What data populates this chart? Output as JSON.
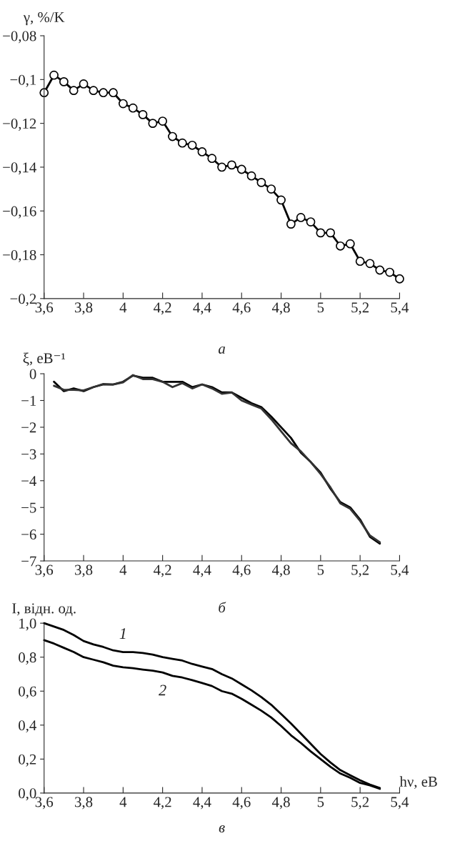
{
  "chart_data": [
    {
      "type": "line",
      "ylabel": "γ, %/K",
      "annotations": [
        "а"
      ],
      "marker": "circle",
      "x": [
        3.6,
        3.65,
        3.7,
        3.75,
        3.8,
        3.85,
        3.9,
        3.95,
        4.0,
        4.05,
        4.1,
        4.15,
        4.2,
        4.25,
        4.3,
        4.35,
        4.4,
        4.45,
        4.5,
        4.55,
        4.6,
        4.65,
        4.7,
        4.75,
        4.8,
        4.85,
        4.9,
        4.95,
        5.0,
        5.05,
        5.1,
        5.15,
        5.2,
        5.25,
        5.3,
        5.35,
        5.4
      ],
      "series": [
        {
          "color": "#000000",
          "values": [
            -0.106,
            -0.098,
            -0.101,
            -0.105,
            -0.102,
            -0.105,
            -0.106,
            -0.106,
            -0.111,
            -0.113,
            -0.116,
            -0.12,
            -0.119,
            -0.126,
            -0.129,
            -0.13,
            -0.133,
            -0.136,
            -0.14,
            -0.139,
            -0.141,
            -0.144,
            -0.147,
            -0.15,
            -0.155,
            -0.166,
            -0.163,
            -0.165,
            -0.17,
            -0.17,
            -0.176,
            -0.175,
            -0.183,
            -0.184,
            -0.187,
            -0.188,
            -0.191
          ]
        }
      ],
      "xlim": [
        3.6,
        5.4
      ],
      "ylim": [
        -0.2,
        -0.08
      ],
      "xticks": [
        {
          "value": 3.6,
          "label": "3,6"
        },
        {
          "value": 3.8,
          "label": "3,8"
        },
        4,
        {
          "value": 4.2,
          "label": "4,2"
        },
        {
          "value": 4.4,
          "label": "4,4"
        },
        {
          "value": 4.6,
          "label": "4,6"
        },
        {
          "value": 4.8,
          "label": "4,8"
        },
        5,
        {
          "value": 5.2,
          "label": "5,2"
        },
        {
          "value": 5.4,
          "label": "5,4"
        }
      ],
      "yticks": [
        {
          "value": -0.2,
          "label": "−0,2"
        },
        {
          "value": -0.18,
          "label": "−0,18"
        },
        {
          "value": -0.16,
          "label": "−0,16"
        },
        {
          "value": -0.14,
          "label": "−0,14"
        },
        {
          "value": -0.12,
          "label": "−0,12"
        },
        {
          "value": -0.1,
          "label": "−0,1"
        },
        {
          "value": -0.08,
          "label": "−0,08"
        }
      ]
    },
    {
      "type": "line",
      "ylabel": "ξ, eB⁻¹",
      "annotations": [
        "б"
      ],
      "x": [
        3.65,
        3.7,
        3.75,
        3.8,
        3.85,
        3.9,
        3.95,
        4.0,
        4.05,
        4.1,
        4.15,
        4.2,
        4.25,
        4.3,
        4.35,
        4.4,
        4.45,
        4.5,
        4.55,
        4.6,
        4.65,
        4.7,
        4.75,
        4.8,
        4.85,
        4.9,
        4.95,
        5.0,
        5.05,
        5.1,
        5.15,
        5.2,
        5.25,
        5.3
      ],
      "series": [
        {
          "color": "#000000",
          "values": [
            -0.3,
            -0.65,
            -0.55,
            -0.65,
            -0.5,
            -0.4,
            -0.4,
            -0.3,
            -0.07,
            -0.15,
            -0.15,
            -0.3,
            -0.3,
            -0.3,
            -0.5,
            -0.4,
            -0.5,
            -0.7,
            -0.7,
            -0.9,
            -1.1,
            -1.25,
            -1.6,
            -2.0,
            -2.4,
            -2.95,
            -3.3,
            -3.7,
            -4.3,
            -4.8,
            -5.0,
            -5.45,
            -6.1,
            -6.35
          ]
        },
        {
          "color": "#333333",
          "values": [
            -0.45,
            -0.6,
            -0.6,
            -0.62,
            -0.5,
            -0.38,
            -0.4,
            -0.32,
            -0.05,
            -0.2,
            -0.2,
            -0.3,
            -0.5,
            -0.35,
            -0.55,
            -0.4,
            -0.55,
            -0.75,
            -0.7,
            -1.0,
            -1.15,
            -1.3,
            -1.7,
            -2.15,
            -2.6,
            -2.9,
            -3.3,
            -3.75,
            -4.25,
            -4.85,
            -5.05,
            -5.5,
            -6.05,
            -6.3
          ]
        }
      ],
      "xlim": [
        3.6,
        5.4
      ],
      "ylim": [
        -7,
        0
      ],
      "xticks": [
        {
          "value": 3.6,
          "label": "3,6"
        },
        {
          "value": 3.8,
          "label": "3,8"
        },
        4,
        {
          "value": 4.2,
          "label": "4,2"
        },
        {
          "value": 4.4,
          "label": "4,4"
        },
        {
          "value": 4.6,
          "label": "4,6"
        },
        {
          "value": 4.8,
          "label": "4,8"
        },
        5,
        {
          "value": 5.2,
          "label": "5,2"
        },
        {
          "value": 5.4,
          "label": "5,4"
        }
      ],
      "yticks": [
        {
          "value": -7,
          "label": "−7"
        },
        {
          "value": -6,
          "label": "−6"
        },
        {
          "value": -5,
          "label": "−5"
        },
        {
          "value": -4,
          "label": "−4"
        },
        {
          "value": -3,
          "label": "−3"
        },
        {
          "value": -2,
          "label": "−2"
        },
        {
          "value": -1,
          "label": "−1"
        },
        0
      ]
    },
    {
      "type": "line",
      "ylabel": "I, відн. од.",
      "xlabel": "hν, eB",
      "annotations": [
        "в"
      ],
      "x": [
        3.6,
        3.65,
        3.7,
        3.75,
        3.8,
        3.85,
        3.9,
        3.95,
        4.0,
        4.05,
        4.1,
        4.15,
        4.2,
        4.25,
        4.3,
        4.35,
        4.4,
        4.45,
        4.5,
        4.55,
        4.6,
        4.65,
        4.7,
        4.75,
        4.8,
        4.85,
        4.9,
        4.95,
        5.0,
        5.05,
        5.1,
        5.15,
        5.2,
        5.25,
        5.3
      ],
      "series": [
        {
          "name": "1",
          "color": "#000000",
          "values": [
            1.0,
            0.98,
            0.96,
            0.93,
            0.895,
            0.875,
            0.86,
            0.84,
            0.83,
            0.83,
            0.825,
            0.815,
            0.8,
            0.79,
            0.78,
            0.76,
            0.745,
            0.73,
            0.7,
            0.675,
            0.64,
            0.605,
            0.565,
            0.52,
            0.465,
            0.41,
            0.35,
            0.29,
            0.23,
            0.18,
            0.135,
            0.105,
            0.075,
            0.05,
            0.03
          ]
        },
        {
          "name": "2",
          "color": "#000000",
          "values": [
            0.9,
            0.88,
            0.855,
            0.83,
            0.8,
            0.785,
            0.77,
            0.75,
            0.74,
            0.735,
            0.727,
            0.72,
            0.71,
            0.69,
            0.68,
            0.665,
            0.648,
            0.63,
            0.6,
            0.585,
            0.555,
            0.52,
            0.485,
            0.445,
            0.395,
            0.34,
            0.295,
            0.245,
            0.2,
            0.155,
            0.115,
            0.09,
            0.06,
            0.045,
            0.025
          ]
        }
      ],
      "xlim": [
        3.6,
        5.4
      ],
      "ylim": [
        0,
        1
      ],
      "xticks": [
        {
          "value": 3.6,
          "label": "3,6"
        },
        {
          "value": 3.8,
          "label": "3,8"
        },
        4,
        {
          "value": 4.2,
          "label": "4,2"
        },
        {
          "value": 4.4,
          "label": "4,4"
        },
        {
          "value": 4.6,
          "label": "4,6"
        },
        {
          "value": 4.8,
          "label": "4,8"
        },
        5,
        {
          "value": 5.2,
          "label": "5,2"
        },
        {
          "value": 5.4,
          "label": "5,4"
        }
      ],
      "yticks": [
        {
          "value": 0,
          "label": "0,0"
        },
        {
          "value": 0.2,
          "label": "0,2"
        },
        {
          "value": 0.4,
          "label": "0,4"
        },
        {
          "value": 0.6,
          "label": "0,6"
        },
        {
          "value": 0.8,
          "label": "0,8"
        },
        {
          "value": 1,
          "label": "1,0"
        }
      ]
    }
  ]
}
